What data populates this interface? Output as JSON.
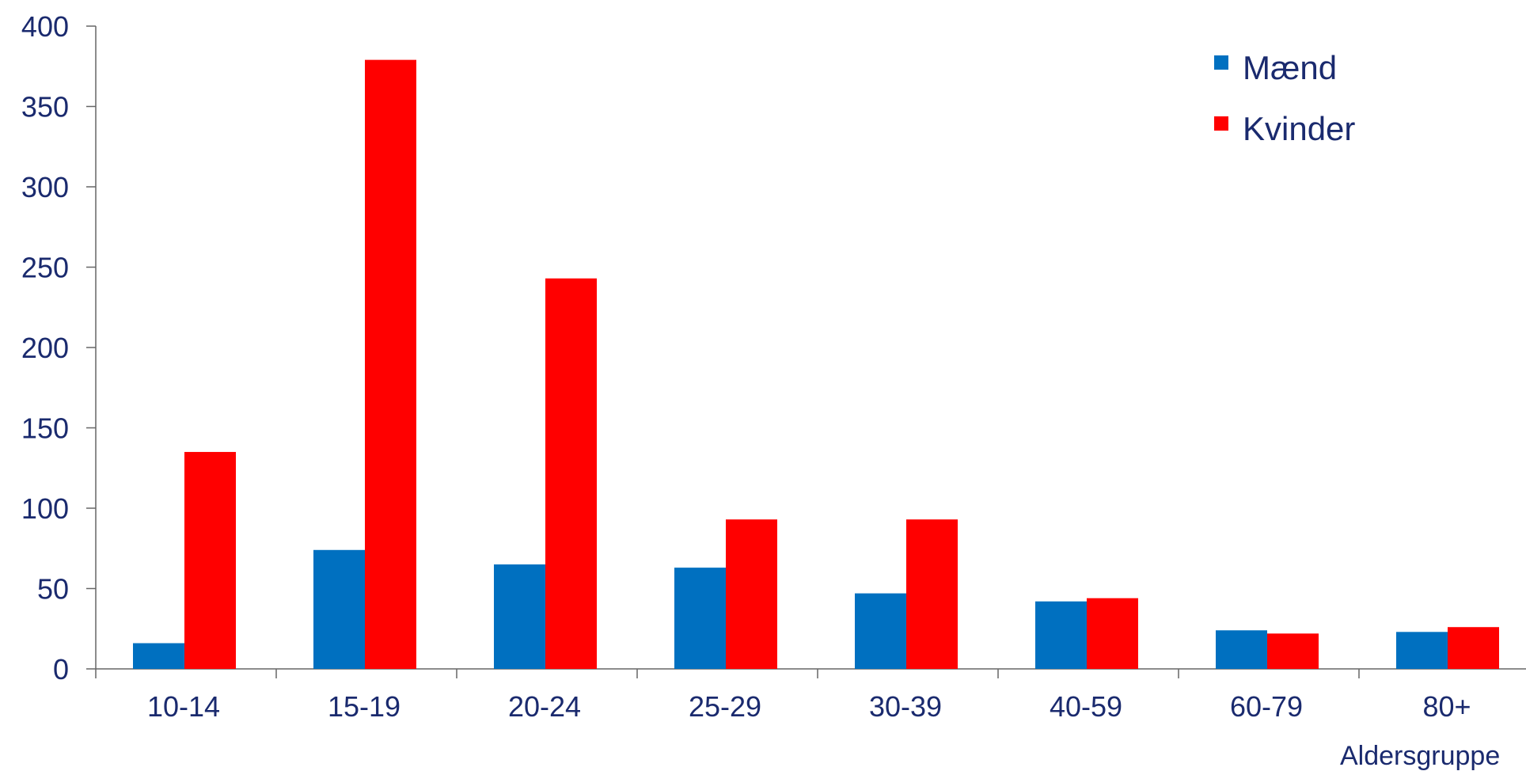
{
  "chart_data": {
    "type": "bar",
    "categories": [
      "10-14",
      "15-19",
      "20-24",
      "25-29",
      "30-39",
      "40-59",
      "60-79",
      "80+"
    ],
    "series": [
      {
        "name": "Mænd",
        "color": "#0070c0",
        "values": [
          16,
          74,
          65,
          63,
          47,
          42,
          24,
          23
        ]
      },
      {
        "name": "Kvinder",
        "color": "#ff0000",
        "values": [
          135,
          379,
          243,
          93,
          93,
          44,
          22,
          26
        ]
      }
    ],
    "xlabel": "Aldersgruppe",
    "ylabel": "",
    "ylim": [
      0,
      400
    ],
    "yticks": [
      0,
      50,
      100,
      150,
      200,
      250,
      300,
      350,
      400
    ],
    "legend_position": "top-right",
    "grid": false
  }
}
